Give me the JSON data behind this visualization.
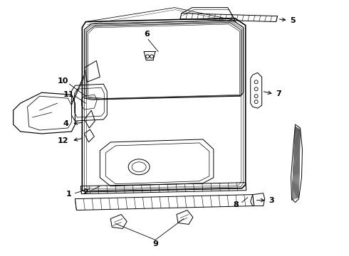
{
  "bg_color": "#ffffff",
  "lc": "#000000",
  "fig_width": 4.9,
  "fig_height": 3.6,
  "dpi": 100
}
